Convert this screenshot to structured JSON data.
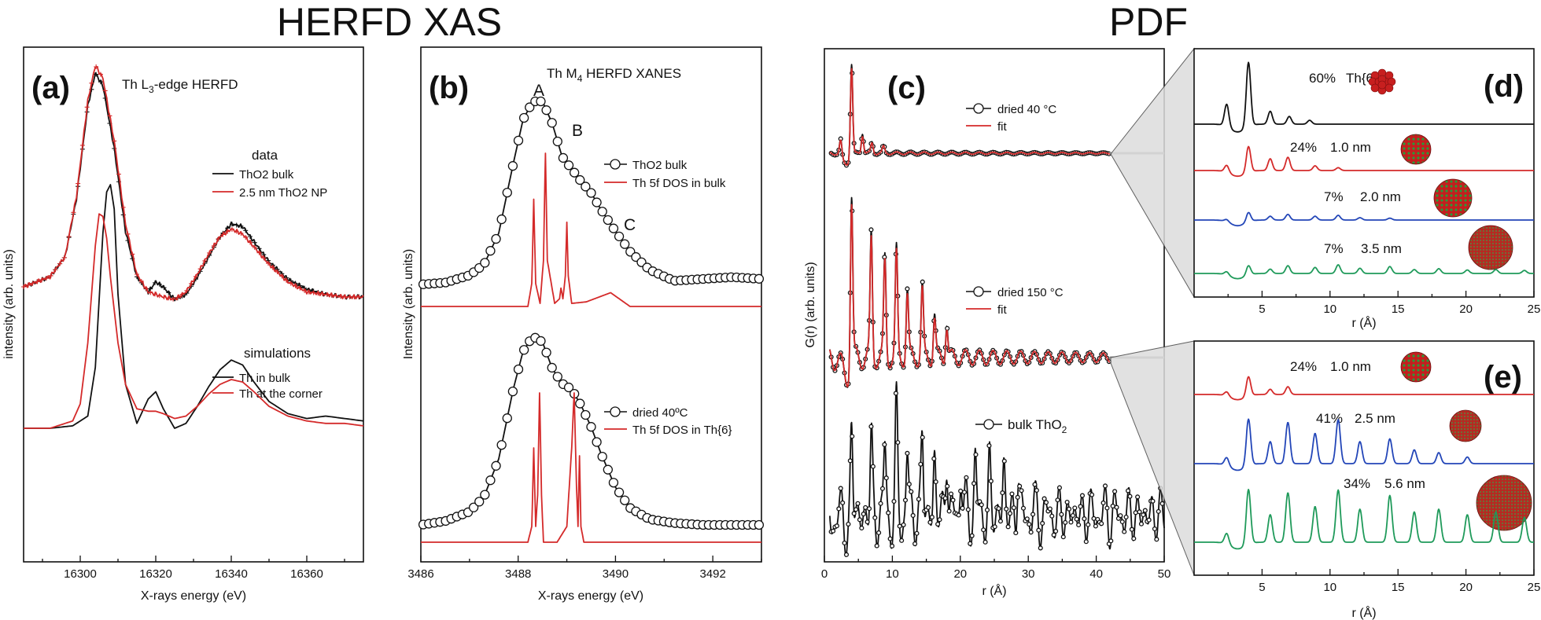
{
  "headers": {
    "left": "HERFD XAS",
    "right": "PDF"
  },
  "colors": {
    "black": "#111111",
    "red": "#d42a2a",
    "blue": "#2346b8",
    "green": "#1f9a5a",
    "grey": "#9a9a9a"
  },
  "panels": {
    "a": {
      "label": "(a)",
      "edge_title": "Th L3-edge HERFD",
      "title_main": "Th L",
      "title_sub": "3",
      "title_rest": "-edge HERFD",
      "data_heading": "data",
      "sim_heading": "simulations",
      "legend_data": [
        "ThO2 bulk",
        "2.5 nm ThO2 NP"
      ],
      "legend_sim": [
        "Th in bulk",
        "Th at the corner"
      ],
      "xlabel": "X-rays energy (eV)",
      "ylabel": "intensity (arb. units)",
      "xticks": [
        "16300",
        "16320",
        "16340",
        "16360"
      ]
    },
    "b": {
      "label": "(b)",
      "title_main": "Th M",
      "title_sub": "4",
      "title_rest": " HERFD XANES",
      "peak_labels": [
        "A",
        "B",
        "C"
      ],
      "legend_top": [
        "ThO2 bulk",
        "Th 5f DOS in bulk"
      ],
      "legend_bottom": [
        "dried 40ºC",
        "Th 5f DOS in Th{6}"
      ],
      "xlabel": "X-rays energy (eV)",
      "ylabel": "Intensity (arb. units)",
      "xticks": [
        "3486",
        "3488",
        "3490",
        "3492"
      ]
    },
    "c": {
      "label": "(c)",
      "legend_top": [
        "dried 40 °C",
        "fit"
      ],
      "legend_mid": [
        "dried 150 °C",
        "fit"
      ],
      "legend_bottom": "bulk ThO2",
      "xlabel": "r (Å)",
      "ylabel": "G(r) (arb. units)",
      "xticks": [
        "0",
        "10",
        "20",
        "30",
        "40",
        "50"
      ]
    },
    "d": {
      "label": "(d)",
      "rows": [
        {
          "pct": "60%",
          "size": "Th{6}"
        },
        {
          "pct": "24%",
          "size": "1.0 nm"
        },
        {
          "pct": "7%",
          "size": "2.0 nm"
        },
        {
          "pct": "7%",
          "size": "3.5 nm"
        }
      ],
      "xlabel": "r (Å)",
      "xticks": [
        "5",
        "10",
        "15",
        "20",
        "25"
      ]
    },
    "e": {
      "label": "(e)",
      "rows": [
        {
          "pct": "24%",
          "size": "1.0 nm"
        },
        {
          "pct": "41%",
          "size": "2.5 nm"
        },
        {
          "pct": "34%",
          "size": "5.6 nm"
        }
      ],
      "xlabel": "r (Å)",
      "xticks": [
        "5",
        "10",
        "15",
        "20",
        "25"
      ]
    }
  },
  "chart_data": [
    {
      "type": "line",
      "panel": "a",
      "xlabel": "X-rays energy (eV)",
      "ylabel": "intensity (arb. units)",
      "xlim": [
        16285,
        16375
      ],
      "series": [
        {
          "name": "ThO2 bulk",
          "color": "black",
          "marker": "plus",
          "x": [
            16285,
            16292,
            16296,
            16299,
            16302,
            16304,
            16306,
            16309,
            16312,
            16315,
            16318,
            16320,
            16322,
            16325,
            16328,
            16331,
            16334,
            16337,
            16340,
            16343,
            16346,
            16350,
            16355,
            16360,
            16365,
            16370,
            16375
          ],
          "y": [
            0.0,
            0.04,
            0.12,
            0.35,
            0.72,
            0.85,
            0.8,
            0.55,
            0.22,
            0.04,
            -0.02,
            0.02,
            0.0,
            -0.05,
            -0.03,
            0.04,
            0.12,
            0.2,
            0.25,
            0.24,
            0.18,
            0.1,
            0.03,
            -0.01,
            -0.03,
            -0.04,
            -0.04
          ]
        },
        {
          "name": "2.5 nm ThO2 NP",
          "color": "red",
          "marker": "plus",
          "x": [
            16285,
            16292,
            16296,
            16299,
            16302,
            16304,
            16306,
            16309,
            16312,
            16315,
            16318,
            16320,
            16322,
            16325,
            16328,
            16331,
            16334,
            16337,
            16340,
            16343,
            16346,
            16350,
            16355,
            16360,
            16365,
            16370,
            16375
          ],
          "y": [
            0.0,
            0.04,
            0.12,
            0.36,
            0.74,
            0.88,
            0.83,
            0.58,
            0.25,
            0.05,
            -0.02,
            -0.03,
            -0.04,
            -0.05,
            -0.02,
            0.05,
            0.13,
            0.2,
            0.23,
            0.21,
            0.16,
            0.09,
            0.02,
            -0.02,
            -0.03,
            -0.04,
            -0.04
          ]
        },
        {
          "name": "Th in bulk",
          "color": "black",
          "marker": "none",
          "x": [
            16285,
            16292,
            16298,
            16302,
            16304,
            16306,
            16307,
            16308,
            16309,
            16310,
            16312,
            16315,
            16318,
            16320,
            16322,
            16325,
            16328,
            16331,
            16334,
            16337,
            16340,
            16343,
            16346,
            16350,
            16355,
            16360,
            16365,
            16370,
            16375
          ],
          "y": [
            0.0,
            0.0,
            0.01,
            0.05,
            0.25,
            0.8,
            0.97,
            1.0,
            0.9,
            0.55,
            0.18,
            0.02,
            0.12,
            0.15,
            0.08,
            0.0,
            0.02,
            0.09,
            0.17,
            0.24,
            0.28,
            0.26,
            0.19,
            0.11,
            0.06,
            0.04,
            0.05,
            0.04,
            0.03
          ]
        },
        {
          "name": "Th at the corner",
          "color": "red",
          "marker": "none",
          "x": [
            16285,
            16292,
            16298,
            16300,
            16302,
            16304,
            16305,
            16306,
            16307,
            16308,
            16310,
            16312,
            16315,
            16318,
            16320,
            16322,
            16325,
            16328,
            16331,
            16334,
            16337,
            16340,
            16343,
            16346,
            16350,
            16355,
            16360,
            16365,
            16370,
            16375
          ],
          "y": [
            0.0,
            0.0,
            0.03,
            0.1,
            0.35,
            0.75,
            0.88,
            0.87,
            0.78,
            0.62,
            0.35,
            0.18,
            0.08,
            0.07,
            0.07,
            0.06,
            0.04,
            0.05,
            0.09,
            0.14,
            0.18,
            0.2,
            0.19,
            0.15,
            0.09,
            0.05,
            0.03,
            0.02,
            0.02,
            0.01
          ]
        }
      ]
    },
    {
      "type": "line",
      "panel": "b",
      "xlabel": "X-rays energy (eV)",
      "ylabel": "Intensity (arb. units)",
      "xlim": [
        3486,
        3493
      ],
      "series": [
        {
          "name": "ThO2 bulk",
          "color": "black",
          "marker": "circle",
          "x": [
            3486.0,
            3486.5,
            3487.0,
            3487.3,
            3487.6,
            3487.9,
            3488.1,
            3488.3,
            3488.5,
            3488.7,
            3488.9,
            3489.1,
            3489.3,
            3489.5,
            3489.7,
            3490.0,
            3490.3,
            3490.7,
            3491.2,
            3491.8,
            3492.4,
            3493.0
          ],
          "y": [
            0.0,
            0.01,
            0.05,
            0.11,
            0.28,
            0.66,
            0.9,
            1.0,
            1.0,
            0.88,
            0.7,
            0.63,
            0.56,
            0.5,
            0.41,
            0.29,
            0.18,
            0.08,
            0.02,
            0.03,
            0.04,
            0.03
          ]
        },
        {
          "name": "Th 5f DOS in bulk",
          "color": "red",
          "marker": "none",
          "x": [
            3486.0,
            3488.2,
            3488.28,
            3488.32,
            3488.36,
            3488.45,
            3488.52,
            3488.56,
            3488.6,
            3488.75,
            3488.85,
            3488.88,
            3488.92,
            3488.97,
            3489.0,
            3489.03,
            3489.1,
            3489.4,
            3489.9,
            3490.3,
            3493.0
          ],
          "y": [
            0.0,
            0.0,
            0.15,
            0.7,
            0.15,
            0.02,
            0.3,
            1.0,
            0.3,
            0.02,
            0.05,
            0.12,
            0.05,
            0.2,
            0.55,
            0.2,
            0.02,
            0.03,
            0.09,
            0.0,
            0.0
          ]
        },
        {
          "name": "dried 40ºC",
          "color": "black",
          "marker": "circle",
          "x": [
            3486.0,
            3486.5,
            3487.0,
            3487.3,
            3487.6,
            3487.9,
            3488.1,
            3488.3,
            3488.5,
            3488.7,
            3488.9,
            3489.1,
            3489.3,
            3489.5,
            3489.7,
            3490.0,
            3490.3,
            3490.7,
            3491.2,
            3491.8,
            3492.4,
            3493.0
          ],
          "y": [
            0.0,
            0.02,
            0.07,
            0.15,
            0.35,
            0.72,
            0.92,
            1.0,
            0.97,
            0.83,
            0.75,
            0.72,
            0.63,
            0.52,
            0.38,
            0.2,
            0.09,
            0.03,
            0.01,
            0.0,
            0.0,
            0.0
          ]
        },
        {
          "name": "Th 5f DOS in Th{6}",
          "color": "red",
          "marker": "none",
          "x": [
            3486.0,
            3488.2,
            3488.28,
            3488.32,
            3488.36,
            3488.4,
            3488.44,
            3488.48,
            3488.52,
            3488.8,
            3489.0,
            3489.1,
            3489.15,
            3489.2,
            3489.23,
            3489.26,
            3489.29,
            3489.35,
            3493.0
          ],
          "y": [
            0.0,
            0.0,
            0.1,
            0.6,
            0.1,
            0.3,
            0.95,
            0.3,
            0.0,
            0.0,
            0.1,
            0.6,
            0.95,
            0.35,
            0.1,
            0.55,
            0.1,
            0.0,
            0.0
          ]
        }
      ]
    },
    {
      "type": "line",
      "panel": "c",
      "xlabel": "r (Å)",
      "ylabel": "G(r) (arb. units)",
      "xlim": [
        0,
        50
      ],
      "series": [
        {
          "name": "dried 40 °C",
          "color": "black",
          "marker": "circle",
          "peak_r": [
            2.4,
            4.0,
            5.6,
            7.0,
            8.7
          ],
          "peak_h": [
            0.18,
            1.0,
            0.22,
            0.12,
            0.08
          ]
        },
        {
          "name": "fit",
          "color": "red",
          "marker": "none",
          "peak_r": [
            2.4,
            4.0,
            5.6,
            7.0,
            8.7
          ],
          "peak_h": [
            0.17,
            0.98,
            0.2,
            0.11,
            0.07
          ]
        },
        {
          "name": "dried 150 °C",
          "color": "black",
          "marker": "circle",
          "peak_r": [
            4.0,
            6.9,
            8.9,
            10.6,
            12.2,
            14.4,
            16.2,
            18.0
          ],
          "peak_h": [
            1.0,
            0.72,
            0.58,
            0.62,
            0.4,
            0.42,
            0.26,
            0.22
          ]
        },
        {
          "name": "fit",
          "color": "red",
          "marker": "none",
          "peak_r": [
            4.0,
            6.9,
            8.9,
            10.6,
            12.2,
            14.4,
            16.2,
            18.0
          ],
          "peak_h": [
            0.98,
            0.7,
            0.56,
            0.6,
            0.38,
            0.4,
            0.24,
            0.2
          ]
        },
        {
          "name": "bulk ThO2",
          "color": "black",
          "marker": "circle",
          "peak_r": [
            4.0,
            6.9,
            8.9,
            10.6,
            12.2,
            14.4,
            16.2,
            18.0,
            20.1,
            22.2,
            24.3,
            26.4,
            28.5
          ],
          "peak_h": [
            0.95,
            0.8,
            0.7,
            1.0,
            0.65,
            0.9,
            0.6,
            0.7,
            0.55,
            0.62,
            0.5,
            0.55,
            0.45
          ]
        }
      ]
    },
    {
      "type": "line",
      "panel": "d",
      "xlabel": "r (Å)",
      "xlim": [
        0,
        25
      ],
      "series": [
        {
          "name": "Th{6}",
          "color": "black",
          "peak_r": [
            2.4,
            4.0,
            5.6,
            7.0,
            8.5
          ],
          "peak_h": [
            0.35,
            1.0,
            0.2,
            0.12,
            0.06
          ]
        },
        {
          "name": "1.0 nm",
          "color": "red",
          "peak_r": [
            2.4,
            4.0,
            5.6,
            6.9,
            8.9,
            10.6
          ],
          "peak_h": [
            0.15,
            0.55,
            0.25,
            0.28,
            0.1,
            0.06
          ]
        },
        {
          "name": "2.0 nm",
          "color": "blue",
          "peak_r": [
            2.4,
            4.0,
            5.6,
            6.9,
            8.9,
            10.6,
            12.2,
            14.4
          ],
          "peak_h": [
            0.05,
            0.2,
            0.08,
            0.12,
            0.08,
            0.1,
            0.05,
            0.04
          ]
        },
        {
          "name": "3.5 nm",
          "color": "green",
          "peak_r": [
            2.4,
            4.0,
            5.6,
            6.9,
            8.9,
            10.6,
            12.2,
            14.4,
            16.2,
            18.0,
            20.1,
            22.2,
            24.3
          ],
          "peak_h": [
            0.08,
            0.22,
            0.1,
            0.18,
            0.14,
            0.2,
            0.12,
            0.16,
            0.09,
            0.11,
            0.08,
            0.09,
            0.07
          ]
        }
      ]
    },
    {
      "type": "line",
      "panel": "e",
      "xlabel": "r (Å)",
      "xlim": [
        0,
        25
      ],
      "series": [
        {
          "name": "1.0 nm",
          "color": "red",
          "peak_r": [
            2.4,
            4.0,
            5.6,
            6.9
          ],
          "peak_h": [
            0.1,
            0.45,
            0.12,
            0.18
          ]
        },
        {
          "name": "2.5 nm",
          "color": "blue",
          "peak_r": [
            2.4,
            4.0,
            5.6,
            6.9,
            8.9,
            10.6,
            12.2,
            14.4,
            16.2,
            18.0,
            20.1
          ],
          "peak_h": [
            0.15,
            0.85,
            0.4,
            0.75,
            0.55,
            0.8,
            0.4,
            0.45,
            0.25,
            0.2,
            0.12
          ]
        },
        {
          "name": "5.6 nm",
          "color": "green",
          "peak_r": [
            2.4,
            4.0,
            5.6,
            6.9,
            8.9,
            10.6,
            12.2,
            14.4,
            16.2,
            18.0,
            20.1,
            22.2,
            24.3
          ],
          "peak_h": [
            0.2,
            1.0,
            0.5,
            0.9,
            0.65,
            0.95,
            0.6,
            0.85,
            0.55,
            0.6,
            0.5,
            0.55,
            0.45
          ]
        }
      ]
    }
  ]
}
